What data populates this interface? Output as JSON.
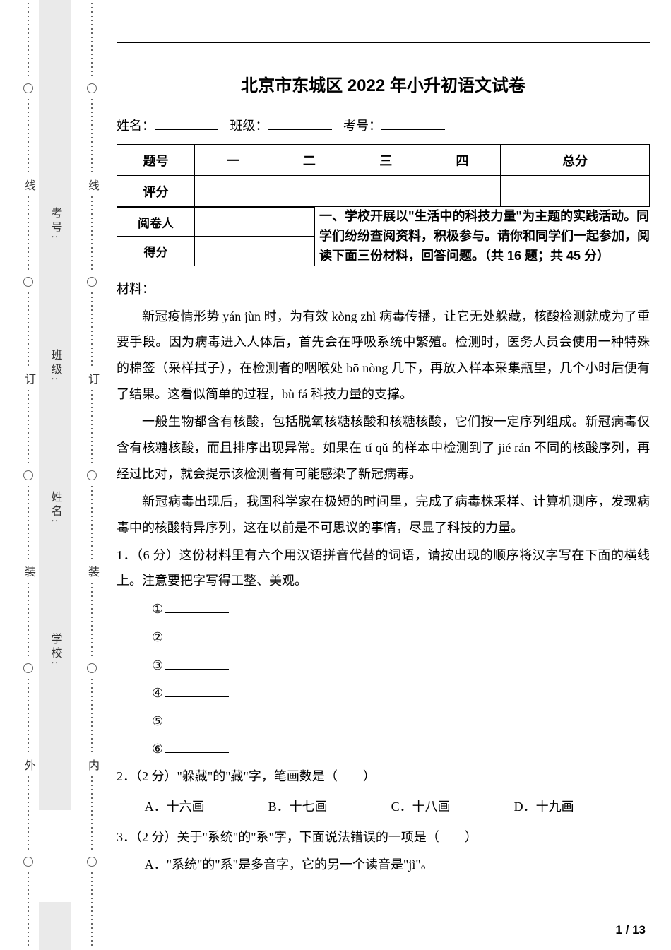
{
  "title": "北京市东城区 2022 年小升初语文试卷",
  "id_row": {
    "name_label": "姓名：",
    "class_label": "班级：",
    "exam_no_label": "考号："
  },
  "score_table": {
    "row1_label": "题号",
    "cols": [
      "一",
      "二",
      "三",
      "四",
      "总分"
    ],
    "row2_label": "评分"
  },
  "grader": {
    "r1": "阅卷人",
    "r2": "得分"
  },
  "section_heading": "一、学校开展以\"生活中的科技力量\"为主题的实践活动。同学们纷纷查阅资料，积极参与。请你和同学们一起参加，阅读下面三份材料，回答问题。（共 16 题；共 45 分）",
  "passage": {
    "label": "材料：",
    "p1": "新冠疫情形势 yán jùn 时，为有效 kòng zhì 病毒传播，让它无处躲藏，核酸检测就成为了重要手段。因为病毒进入人体后，首先会在呼吸系统中繁殖。检测时，医务人员会使用一种特殊的棉签（采样拭子），在检测者的咽喉处 bō nòng 几下，再放入样本采集瓶里，几个小时后便有了结果。这看似简单的过程，bù fá 科技力量的支撑。",
    "p2": "一般生物都含有核酸，包括脱氧核糖核酸和核糖核酸，它们按一定序列组成。新冠病毒仅含有核糖核酸，而且排序出现异常。如果在 tí qǔ 的样本中检测到了 jié rán 不同的核酸序列，再经过比对，就会提示该检测者有可能感染了新冠病毒。",
    "p3": "新冠病毒出现后，我国科学家在极短的时间里，完成了病毒株采样、计算机测序，发现病毒中的核酸特异序列，这在以前是不可思议的事情，尽显了科技的力量。"
  },
  "q1": {
    "stem": "1．（6 分）这份材料里有六个用汉语拼音代替的词语，请按出现的顺序将汉字写在下面的横线上。注意要把字写得工整、美观。",
    "marks": [
      "①",
      "②",
      "③",
      "④",
      "⑤",
      "⑥"
    ]
  },
  "q2": {
    "stem": "2．（2 分）\"躲藏\"的\"藏\"字，笔画数是（　　）",
    "opts": [
      "A．十六画",
      "B．十七画",
      "C．十八画",
      "D．十九画"
    ]
  },
  "q3": {
    "stem": "3．（2 分）关于\"系统\"的\"系\"字，下面说法错误的一项是（　　）",
    "optA": "A．\"系统\"的\"系\"是多音字，它的另一个读音是\"jì\"。"
  },
  "margin_outer": [
    "外",
    "装",
    "订",
    "线"
  ],
  "margin_inner": [
    "内",
    "装",
    "订",
    "线"
  ],
  "side_labels": [
    "考号:",
    "班级:",
    "姓名:",
    "学校:"
  ],
  "page_num": "1 / 13"
}
